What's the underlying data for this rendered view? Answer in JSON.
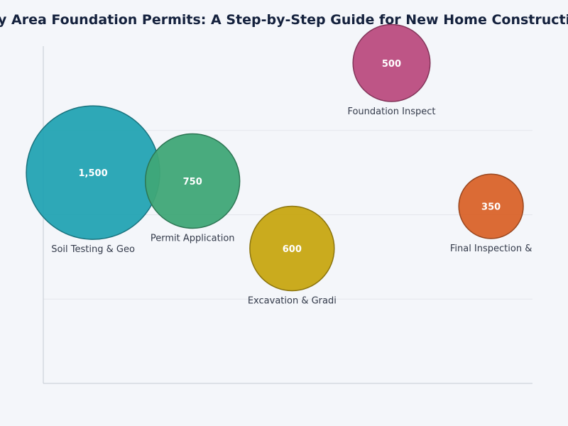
{
  "chart_data": {
    "type": "scatter",
    "title": "Bay Area Foundation Permits: A Step-by-Step Guide for New Home Construction",
    "xlabel": "",
    "ylabel": "",
    "xlim": [
      0.4,
      6.3
    ],
    "ylim": [
      0,
      4
    ],
    "grid": true,
    "series": [
      {
        "points": [
          {
            "label": "Soil Testing & Geo",
            "x": 1,
            "y": 2.5,
            "size": 1500,
            "value_label": "1,500",
            "color": "#23a3b3"
          },
          {
            "label": "Permit Application",
            "x": 2.2,
            "y": 2.4,
            "size": 750,
            "value_label": "750",
            "color": "#3fa777"
          },
          {
            "label": "Excavation & Gradi",
            "x": 3.4,
            "y": 1.6,
            "size": 600,
            "value_label": "600",
            "color": "#c7a612"
          },
          {
            "label": "Foundation Inspect",
            "x": 4.6,
            "y": 3.8,
            "size": 500,
            "value_label": "500",
            "color": "#bb4c80"
          },
          {
            "label": "Final Inspection &",
            "x": 5.8,
            "y": 2.1,
            "size": 350,
            "value_label": "350",
            "color": "#d9632a"
          }
        ]
      }
    ]
  }
}
